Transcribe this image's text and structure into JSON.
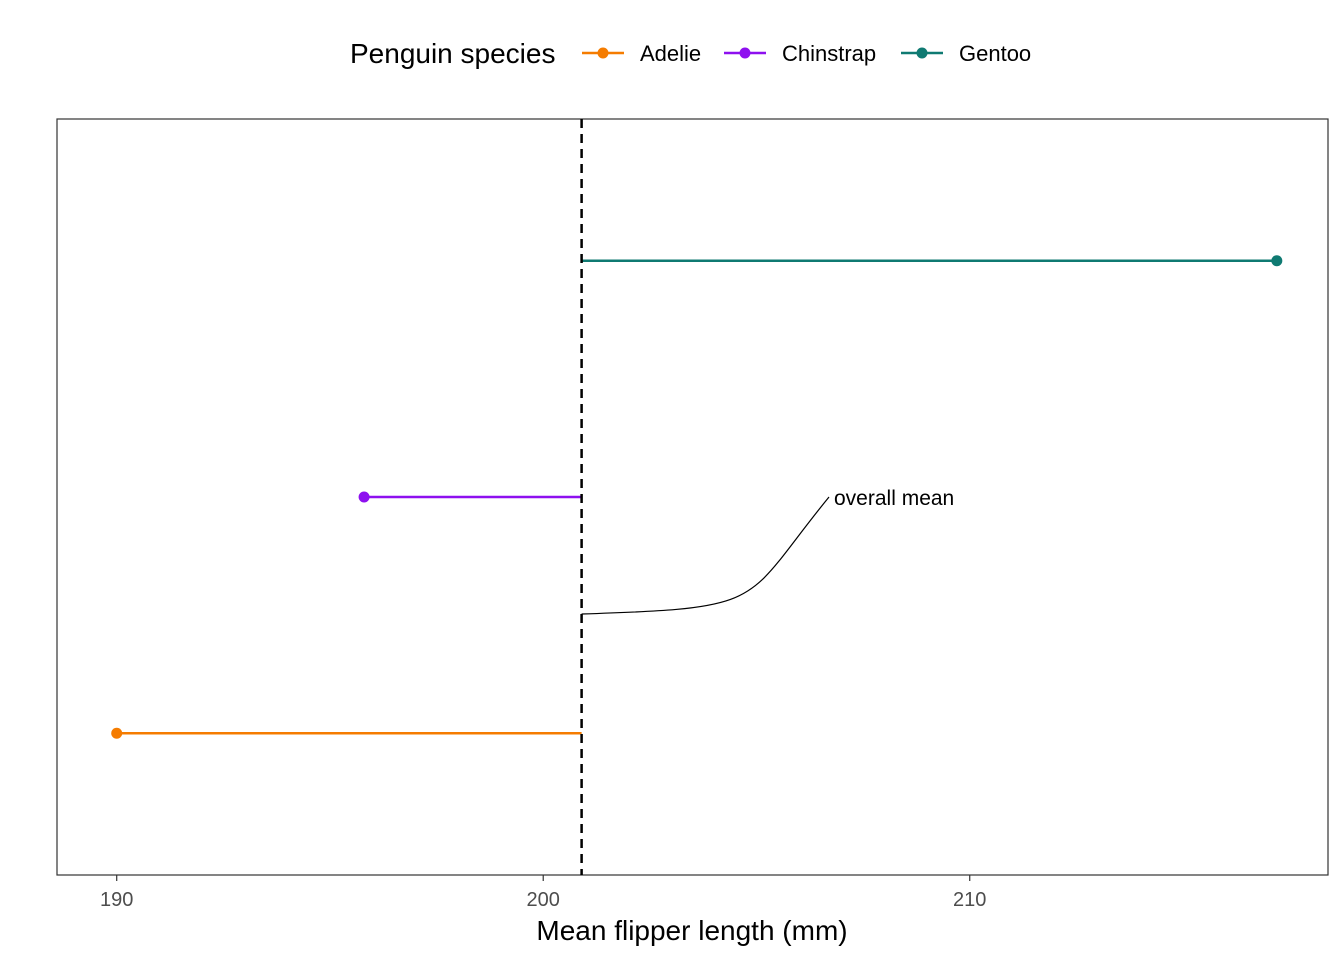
{
  "chart_data": {
    "type": "lollipop",
    "legend": {
      "title": "Penguin species",
      "position": "top",
      "entries": [
        {
          "label": "Adelie",
          "color": "#f57c00"
        },
        {
          "label": "Chinstrap",
          "color": "#8e10ef"
        },
        {
          "label": "Gentoo",
          "color": "#0f7a72"
        }
      ]
    },
    "xlabel": "Mean flipper length (mm)",
    "ylabel": "",
    "xlim": [
      188.6,
      218.4
    ],
    "x_ticks": [
      190,
      200,
      210
    ],
    "x_tick_labels": [
      "190",
      "200",
      "210"
    ],
    "grid": false,
    "reference_line": {
      "value": 200.9,
      "style": "dashed",
      "color": "#000000"
    },
    "series": [
      {
        "name": "Adelie",
        "value": 190.0,
        "color": "#f57c00"
      },
      {
        "name": "Chinstrap",
        "value": 195.8,
        "color": "#8e10ef"
      },
      {
        "name": "Gentoo",
        "value": 217.2,
        "color": "#0f7a72"
      }
    ],
    "annotation": {
      "text": "overall mean"
    }
  }
}
